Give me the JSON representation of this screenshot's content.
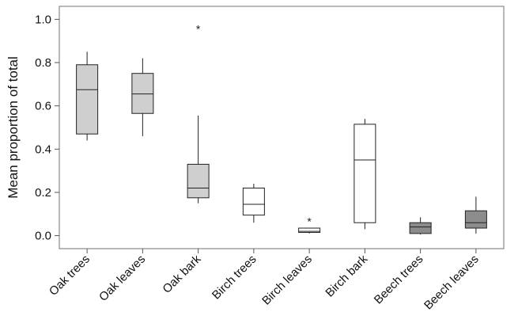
{
  "chart_data": {
    "type": "box",
    "title": "",
    "xlabel": "",
    "ylabel": "Mean proportion of total",
    "ylim": [
      -0.06,
      1.06
    ],
    "yticks": [
      0.0,
      0.2,
      0.4,
      0.6,
      0.8,
      1.0
    ],
    "ytick_labels": [
      "0.0",
      "0.2",
      "0.4",
      "0.6",
      "0.8",
      "1.0"
    ],
    "grid": false,
    "legend": "none",
    "colors": {
      "light_gray": "#cfcfcf",
      "white": "#ffffff",
      "dark_gray": "#8c8c8c",
      "frame": "#888888"
    },
    "categories": [
      "Oak trees",
      "Oak leaves",
      "Oak bark",
      "Birch trees",
      "Birch leaves",
      "Birch bark",
      "Beech trees",
      "Beech leaves"
    ],
    "boxes": [
      {
        "category": "Oak trees",
        "min": 0.44,
        "q1": 0.47,
        "median": 0.675,
        "q3": 0.79,
        "max": 0.85,
        "outliers": [],
        "fill": "light_gray"
      },
      {
        "category": "Oak leaves",
        "min": 0.46,
        "q1": 0.565,
        "median": 0.655,
        "q3": 0.75,
        "max": 0.82,
        "outliers": [],
        "fill": "light_gray"
      },
      {
        "category": "Oak bark",
        "min": 0.15,
        "q1": 0.175,
        "median": 0.22,
        "q3": 0.33,
        "max": 0.555,
        "outliers": [
          0.96
        ],
        "fill": "light_gray"
      },
      {
        "category": "Birch trees",
        "min": 0.06,
        "q1": 0.095,
        "median": 0.145,
        "q3": 0.22,
        "max": 0.24,
        "outliers": [],
        "fill": "white"
      },
      {
        "category": "Birch leaves",
        "min": 0.01,
        "q1": 0.015,
        "median": 0.02,
        "q3": 0.035,
        "max": 0.035,
        "outliers": [
          0.07
        ],
        "fill": "white"
      },
      {
        "category": "Birch bark",
        "min": 0.03,
        "q1": 0.06,
        "median": 0.35,
        "q3": 0.515,
        "max": 0.54,
        "outliers": [],
        "fill": "white"
      },
      {
        "category": "Beech trees",
        "min": 0.005,
        "q1": 0.01,
        "median": 0.04,
        "q3": 0.06,
        "max": 0.085,
        "outliers": [],
        "fill": "dark_gray"
      },
      {
        "category": "Beech leaves",
        "min": 0.01,
        "q1": 0.035,
        "median": 0.06,
        "q3": 0.115,
        "max": 0.18,
        "outliers": [],
        "fill": "dark_gray"
      }
    ],
    "outlier_symbol": "*"
  }
}
